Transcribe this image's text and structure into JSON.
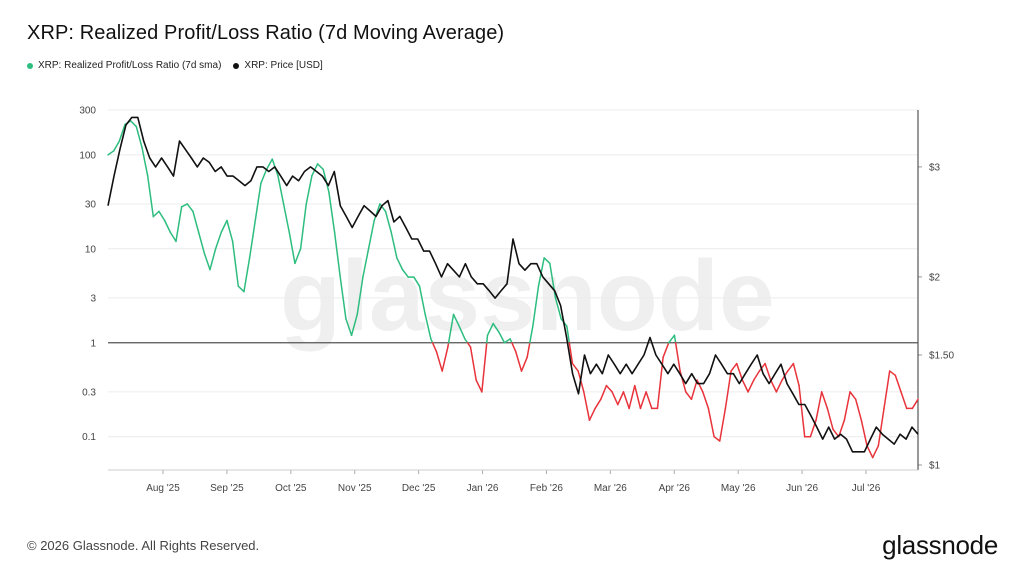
{
  "header": {
    "title": "XRP: Realized Profit/Loss Ratio (7d Moving Average)"
  },
  "legend": {
    "series1": "XRP: Realized Profit/Loss Ratio (7d sma)",
    "series2": "XRP: Price [USD]"
  },
  "footer": {
    "copyright": "© 2026 Glassnode. All Rights Reserved.",
    "brand": "glassnode"
  },
  "watermark": "glassnode",
  "colors": {
    "profit": "#2dbd7e",
    "loss": "#e8333a",
    "price": "#111111",
    "baseline": "#555555"
  },
  "chart_data": {
    "type": "line",
    "title": "XRP: Realized Profit/Loss Ratio (7d Moving Average)",
    "x_ticks": [
      "Aug '25",
      "Sep '25",
      "Oct '25",
      "Nov '25",
      "Dec '25",
      "Jan '26",
      "Feb '26",
      "Mar '26",
      "Apr '26",
      "May '26",
      "Jun '26",
      "Jul '26"
    ],
    "left_axis": {
      "scale": "log",
      "ticks": [
        0.1,
        0.3,
        1,
        3,
        10,
        30,
        100,
        300
      ],
      "tick_labels": [
        "0.1",
        "0.3",
        "1",
        "3",
        "10",
        "30",
        "100",
        "300"
      ],
      "range": [
        0.05,
        300
      ]
    },
    "right_axis": {
      "scale": "log",
      "ticks": [
        1,
        1.5,
        2,
        3
      ],
      "tick_labels": [
        "$1",
        "$1.50",
        "$2",
        "$3"
      ],
      "range": [
        1,
        3.7
      ]
    },
    "reference_line": 1,
    "series": [
      {
        "name": "XRP: Realized Profit/Loss Ratio (7d sma)",
        "axis": "left",
        "values": [
          100,
          110,
          140,
          210,
          230,
          200,
          120,
          60,
          22,
          25,
          20,
          15,
          12,
          28,
          30,
          25,
          15,
          9,
          6,
          10,
          15,
          20,
          12,
          4,
          3.5,
          8,
          20,
          50,
          70,
          90,
          60,
          30,
          15,
          7,
          10,
          30,
          60,
          80,
          70,
          40,
          15,
          5,
          1.8,
          1.2,
          2,
          5,
          10,
          20,
          30,
          25,
          15,
          8,
          6,
          5,
          5,
          4,
          2,
          1.1,
          0.8,
          0.5,
          0.9,
          2,
          1.5,
          1.1,
          0.9,
          0.4,
          0.3,
          1.2,
          1.6,
          1.3,
          1,
          1.1,
          0.8,
          0.5,
          0.7,
          1.5,
          4,
          8,
          7,
          3,
          1.8,
          1.5,
          0.6,
          0.5,
          0.3,
          0.15,
          0.2,
          0.25,
          0.35,
          0.3,
          0.22,
          0.3,
          0.2,
          0.35,
          0.2,
          0.3,
          0.2,
          0.2,
          0.7,
          1.0,
          1.2,
          0.5,
          0.3,
          0.25,
          0.4,
          0.3,
          0.2,
          0.1,
          0.09,
          0.2,
          0.5,
          0.6,
          0.4,
          0.3,
          0.4,
          0.5,
          0.6,
          0.4,
          0.3,
          0.4,
          0.5,
          0.6,
          0.35,
          0.1,
          0.1,
          0.15,
          0.3,
          0.2,
          0.12,
          0.1,
          0.15,
          0.3,
          0.25,
          0.15,
          0.08,
          0.06,
          0.08,
          0.2,
          0.5,
          0.45,
          0.3,
          0.2,
          0.2,
          0.25
        ]
      },
      {
        "name": "XRP: Price [USD]",
        "axis": "right",
        "values": [
          2.6,
          2.9,
          3.2,
          3.5,
          3.6,
          3.6,
          3.3,
          3.1,
          3.0,
          3.1,
          3.0,
          2.9,
          3.3,
          3.2,
          3.1,
          3.0,
          3.1,
          3.05,
          2.95,
          3.0,
          2.9,
          2.9,
          2.85,
          2.8,
          2.85,
          3.0,
          3.0,
          2.95,
          3.0,
          2.9,
          2.8,
          2.9,
          2.85,
          2.95,
          3.0,
          2.95,
          2.9,
          2.8,
          2.95,
          2.6,
          2.5,
          2.4,
          2.5,
          2.6,
          2.55,
          2.5,
          2.6,
          2.65,
          2.45,
          2.5,
          2.4,
          2.3,
          2.3,
          2.2,
          2.2,
          2.1,
          2.0,
          2.1,
          2.05,
          2.0,
          2.1,
          2.0,
          1.95,
          1.95,
          1.9,
          1.85,
          1.9,
          1.95,
          2.3,
          2.1,
          2.05,
          2.1,
          2.1,
          2.0,
          1.95,
          1.9,
          1.8,
          1.6,
          1.4,
          1.3,
          1.5,
          1.4,
          1.45,
          1.4,
          1.5,
          1.45,
          1.4,
          1.45,
          1.4,
          1.45,
          1.5,
          1.6,
          1.5,
          1.45,
          1.4,
          1.45,
          1.4,
          1.35,
          1.4,
          1.35,
          1.35,
          1.4,
          1.5,
          1.45,
          1.4,
          1.4,
          1.35,
          1.4,
          1.45,
          1.5,
          1.4,
          1.35,
          1.4,
          1.45,
          1.35,
          1.3,
          1.25,
          1.25,
          1.2,
          1.15,
          1.1,
          1.15,
          1.1,
          1.12,
          1.1,
          1.05,
          1.05,
          1.05,
          1.1,
          1.15,
          1.12,
          1.1,
          1.08,
          1.12,
          1.1,
          1.15,
          1.12
        ]
      }
    ]
  }
}
